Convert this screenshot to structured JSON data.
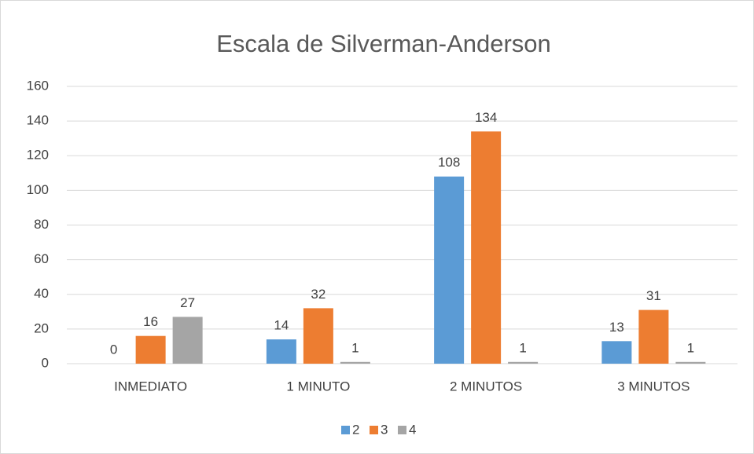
{
  "chart_data": {
    "type": "bar",
    "title": "Escala de Silverman-Anderson",
    "categories": [
      "INMEDIATO",
      "1 MINUTO",
      "2 MINUTOS",
      "3 MINUTOS"
    ],
    "series": [
      {
        "name": "2",
        "color": "#5b9bd5",
        "values": [
          0,
          14,
          108,
          13
        ]
      },
      {
        "name": "3",
        "color": "#ed7d31",
        "values": [
          16,
          32,
          134,
          31
        ]
      },
      {
        "name": "4",
        "color": "#a5a5a5",
        "values": [
          27,
          1,
          1,
          1
        ]
      }
    ],
    "ylim": [
      0,
      160
    ],
    "yticks": [
      0,
      20,
      40,
      60,
      80,
      100,
      120,
      140,
      160
    ],
    "grid": true,
    "legend": "bottom",
    "data_labels": true
  }
}
